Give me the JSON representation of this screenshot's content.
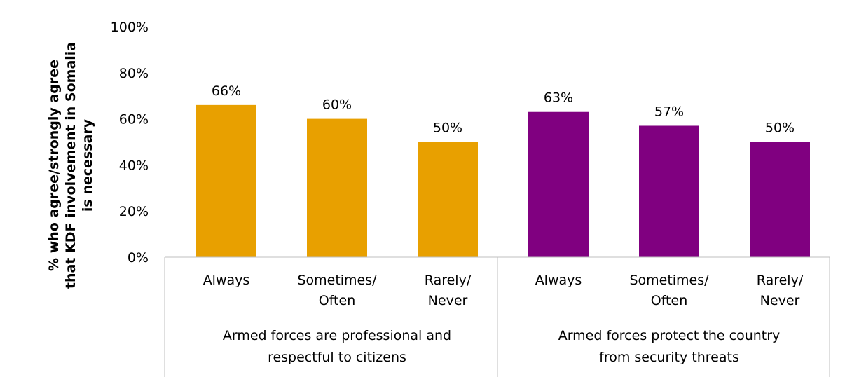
{
  "chart_data": {
    "type": "bar",
    "ylabel_lines": [
      "% who agree/strongly agree",
      "that KDF involvement in Somalia",
      "is necessary"
    ],
    "yticks": [
      "0%",
      "20%",
      "40%",
      "60%",
      "80%",
      "100%"
    ],
    "ylim": [
      0,
      100
    ],
    "grid": false,
    "legend": "none",
    "groups": [
      {
        "label_lines": [
          "Armed forces are professional and",
          "respectful to citizens"
        ],
        "color": "#E8A000",
        "categories": [
          [
            "Always"
          ],
          [
            "Sometimes/",
            "Often"
          ],
          [
            "Rarely/",
            "Never"
          ]
        ],
        "values": [
          66,
          60,
          50
        ],
        "labels": [
          "66%",
          "60%",
          "50%"
        ]
      },
      {
        "label_lines": [
          "Armed forces protect the country",
          "from security threats"
        ],
        "color": "#800080",
        "categories": [
          [
            "Always"
          ],
          [
            "Sometimes/",
            "Often"
          ],
          [
            "Rarely/",
            "Never"
          ]
        ],
        "values": [
          63,
          57,
          50
        ],
        "labels": [
          "63%",
          "57%",
          "50%"
        ]
      }
    ]
  }
}
